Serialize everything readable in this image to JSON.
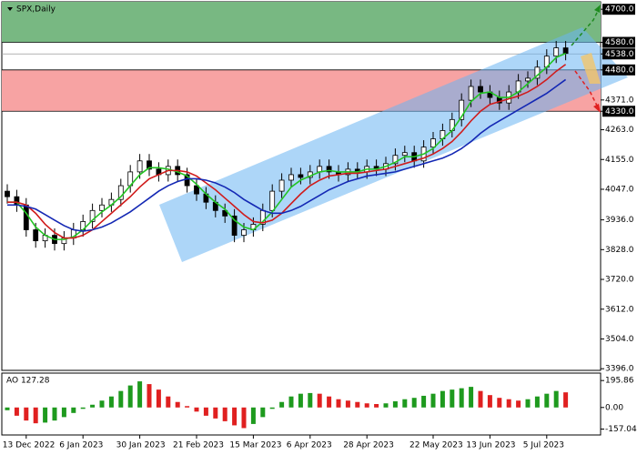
{
  "chart_data": [
    {
      "type": "candlestick",
      "title": "SPX,Daily",
      "categories": [
        null,
        null,
        "13 Dec 2022",
        null,
        null,
        null,
        null,
        null,
        "6 Jan 2023",
        null,
        null,
        null,
        null,
        null,
        "30 Jan 2023",
        null,
        null,
        null,
        null,
        null,
        "21 Feb 2023",
        null,
        null,
        null,
        null,
        null,
        "15 Mar 2023",
        null,
        null,
        null,
        null,
        null,
        "6 Apr 2023",
        null,
        null,
        null,
        null,
        null,
        "28 Apr 2023",
        null,
        null,
        null,
        null,
        null,
        null,
        "22 May 2023",
        null,
        null,
        null,
        null,
        null,
        "13 Jun 2023",
        null,
        null,
        null,
        null,
        null,
        "5 Jul 2023",
        null,
        null
      ],
      "open": [
        4040,
        4020,
        3990,
        3900,
        3860,
        3880,
        3850,
        3870,
        3900,
        3930,
        3970,
        3990,
        4010,
        4060,
        4110,
        4150,
        4120,
        4100,
        4130,
        4100,
        4060,
        4030,
        4000,
        3970,
        3950,
        3880,
        3900,
        3920,
        3970,
        4040,
        4080,
        4100,
        4090,
        4110,
        4130,
        4110,
        4100,
        4120,
        4110,
        4130,
        4120,
        4140,
        4170,
        4180,
        4150,
        4200,
        4230,
        4260,
        4300,
        4370,
        4420,
        4400,
        4380,
        4360,
        4400,
        4440,
        4450,
        4490,
        4530,
        4560
      ],
      "high": [
        4065,
        4045,
        4015,
        3925,
        3905,
        3905,
        3895,
        3925,
        3955,
        3995,
        4015,
        4035,
        4085,
        4135,
        4175,
        4175,
        4145,
        4155,
        4155,
        4125,
        4085,
        4055,
        4025,
        3995,
        3975,
        3925,
        3945,
        3995,
        4065,
        4105,
        4125,
        4125,
        4135,
        4155,
        4155,
        4135,
        4145,
        4145,
        4155,
        4155,
        4165,
        4195,
        4205,
        4205,
        4225,
        4255,
        4285,
        4325,
        4395,
        4445,
        4445,
        4425,
        4405,
        4425,
        4465,
        4475,
        4515,
        4555,
        4585,
        4585
      ],
      "low": [
        3995,
        3965,
        3875,
        3835,
        3835,
        3825,
        3825,
        3845,
        3875,
        3905,
        3945,
        3965,
        3985,
        4035,
        4085,
        4095,
        4075,
        4075,
        4075,
        4035,
        4005,
        3975,
        3945,
        3925,
        3855,
        3855,
        3875,
        3895,
        3945,
        4015,
        4055,
        4065,
        4065,
        4085,
        4085,
        4075,
        4075,
        4085,
        4085,
        4095,
        4095,
        4115,
        4145,
        4125,
        4125,
        4175,
        4205,
        4235,
        4275,
        4345,
        4375,
        4355,
        4335,
        4335,
        4375,
        4415,
        4425,
        4465,
        4505,
        4515
      ],
      "close": [
        4020,
        3990,
        3900,
        3860,
        3880,
        3850,
        3870,
        3900,
        3930,
        3970,
        3990,
        4010,
        4060,
        4110,
        4150,
        4120,
        4100,
        4130,
        4100,
        4060,
        4030,
        4000,
        3970,
        3950,
        3880,
        3900,
        3920,
        3970,
        4040,
        4080,
        4100,
        4090,
        4110,
        4130,
        4110,
        4100,
        4120,
        4110,
        4130,
        4120,
        4140,
        4170,
        4180,
        4150,
        4200,
        4230,
        4260,
        4300,
        4370,
        4420,
        4400,
        4380,
        4360,
        4400,
        4440,
        4450,
        4490,
        4530,
        4560,
        4540
      ],
      "series": [
        {
          "color": "#22c422",
          "values": [
            4000,
            4000,
            3960,
            3910,
            3880,
            3865,
            3865,
            3875,
            3900,
            3935,
            3965,
            3990,
            4020,
            4060,
            4100,
            4125,
            4125,
            4120,
            4110,
            4095,
            4065,
            4030,
            4000,
            3975,
            3935,
            3910,
            3900,
            3930,
            3965,
            4010,
            4055,
            4080,
            4095,
            4110,
            4115,
            4110,
            4110,
            4110,
            4120,
            4120,
            4130,
            4145,
            4165,
            4165,
            4175,
            4195,
            4230,
            4260,
            4310,
            4365,
            4395,
            4400,
            4380,
            4380,
            4400,
            4430,
            4460,
            4490,
            4525,
            4540
          ]
        },
        {
          "color": "#d01c1c",
          "values": [
            4000,
            4000,
            3990,
            3960,
            3920,
            3890,
            3870,
            3870,
            3880,
            3900,
            3930,
            3960,
            3990,
            4020,
            4055,
            4085,
            4100,
            4115,
            4115,
            4110,
            4095,
            4070,
            4045,
            4015,
            3985,
            3955,
            3930,
            3925,
            3935,
            3960,
            3995,
            4030,
            4060,
            4080,
            4095,
            4100,
            4105,
            4105,
            4110,
            4115,
            4120,
            4130,
            4140,
            4150,
            4160,
            4175,
            4195,
            4220,
            4255,
            4295,
            4330,
            4355,
            4365,
            4375,
            4385,
            4400,
            4420,
            4445,
            4475,
            4500
          ]
        },
        {
          "color": "#1428b4",
          "values": [
            3990,
            3990,
            3985,
            3975,
            3955,
            3935,
            3915,
            3900,
            3895,
            3900,
            3910,
            3925,
            3945,
            3965,
            3990,
            4015,
            4040,
            4060,
            4075,
            4085,
            4085,
            4080,
            4070,
            4055,
            4035,
            4010,
            3990,
            3970,
            3960,
            3960,
            3970,
            3985,
            4005,
            4025,
            4045,
            4060,
            4075,
            4085,
            4095,
            4100,
            4105,
            4110,
            4120,
            4130,
            4140,
            4150,
            4160,
            4175,
            4195,
            4220,
            4250,
            4275,
            4295,
            4315,
            4335,
            4355,
            4375,
            4395,
            4420,
            4445
          ]
        }
      ],
      "ylim": [
        3390,
        4727
      ],
      "yticks": [
        {
          "value": 4700,
          "label": "4700.0",
          "boxed": true
        },
        {
          "value": 4580,
          "label": "4580.0",
          "boxed": true
        },
        {
          "value": 4538,
          "label": "4538.0",
          "boxed": true
        },
        {
          "value": 4480,
          "label": "4480.0",
          "boxed": true
        },
        {
          "value": 4371,
          "label": "4371.0"
        },
        {
          "value": 4330,
          "label": "4330.0",
          "boxed": true
        },
        {
          "value": 4263,
          "label": "4263.0"
        },
        {
          "value": 4155,
          "label": "4155.0"
        },
        {
          "value": 4047,
          "label": "4047.0"
        },
        {
          "value": 3936,
          "label": "3936.0"
        },
        {
          "value": 3828,
          "label": "3828.0"
        },
        {
          "value": 3720,
          "label": "3720.0"
        },
        {
          "value": 3612,
          "label": "3612.0"
        },
        {
          "value": 3504,
          "label": "3504.0"
        },
        {
          "value": 3396,
          "label": "3396.0"
        }
      ],
      "up_color": "#ffffff",
      "down_color": "#000000",
      "resistance_color": "#78b882",
      "support_color": "#f7a3a3",
      "level_color": "#9a9a9a"
    },
    {
      "type": "bar",
      "title": "AO 127.28",
      "values": [
        -20,
        -60,
        -95,
        -115,
        -110,
        -95,
        -70,
        -40,
        -10,
        20,
        50,
        80,
        120,
        160,
        190,
        170,
        130,
        80,
        40,
        10,
        -30,
        -60,
        -80,
        -100,
        -130,
        -150,
        -120,
        -70,
        -10,
        40,
        80,
        100,
        105,
        100,
        80,
        60,
        50,
        40,
        30,
        25,
        30,
        45,
        60,
        70,
        85,
        100,
        120,
        130,
        140,
        150,
        120,
        90,
        70,
        60,
        50,
        60,
        80,
        100,
        120,
        110
      ],
      "ylim": [
        -200,
        250
      ],
      "yticks": [
        {
          "value": 195.86,
          "label": "195.86"
        },
        {
          "value": 0,
          "label": "0.00"
        },
        {
          "value": -157.04,
          "label": "-157.04"
        }
      ],
      "up_color": "#1e9a1e",
      "down_color": "#e02020"
    }
  ]
}
